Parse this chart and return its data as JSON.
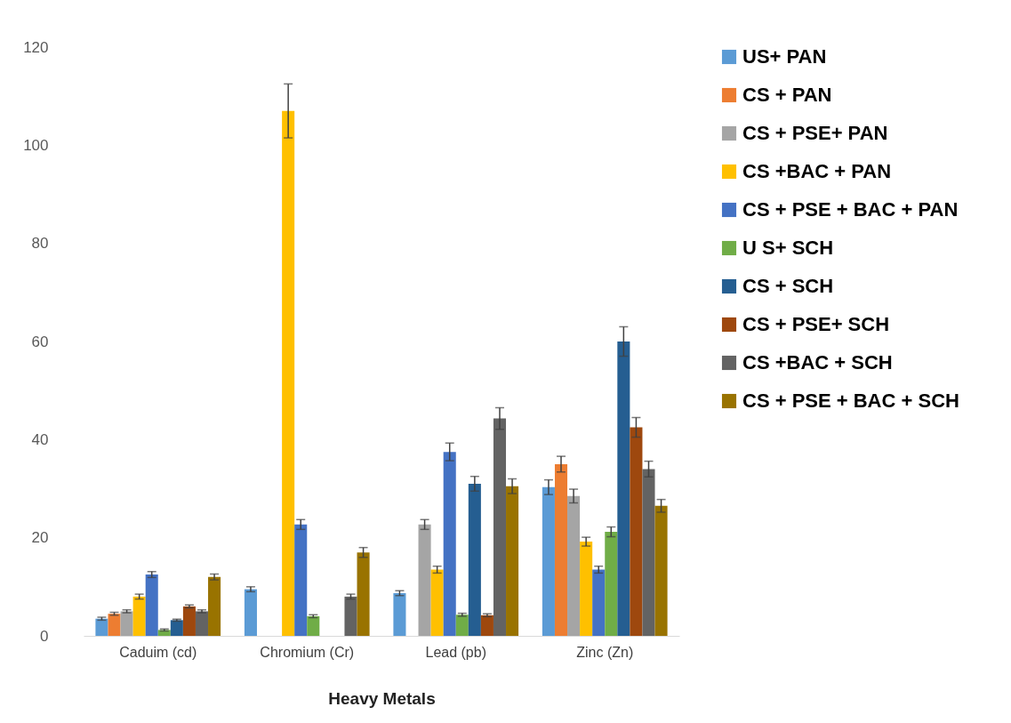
{
  "chart_data": {
    "type": "bar",
    "xlabel": "Heavy Metals",
    "categories": [
      "Caduim (cd)",
      "Chromium (Cr)",
      "Lead (pb)",
      "Zinc (Zn)"
    ],
    "ylim": [
      0,
      120
    ],
    "yticks": [
      0,
      20,
      40,
      60,
      80,
      100,
      120
    ],
    "grid": false,
    "legend": "right",
    "series": [
      {
        "name": "US+ PAN",
        "color": "#5b9bd5",
        "values": [
          3.5,
          9.5,
          8.7,
          30.3
        ],
        "errors": [
          0.3,
          0.5,
          0.5,
          1.5
        ]
      },
      {
        "name": "CS + PAN",
        "color": "#ed7d31",
        "values": [
          4.5,
          0,
          0,
          35
        ],
        "errors": [
          0.3,
          null,
          null,
          1.6
        ]
      },
      {
        "name": "CS + PSE+ PAN",
        "color": "#a5a5a5",
        "values": [
          5,
          0,
          22.7,
          28.5
        ],
        "errors": [
          0.3,
          null,
          1,
          1.4
        ]
      },
      {
        "name": "CS +BAC + PAN",
        "color": "#ffc000",
        "values": [
          8,
          107,
          13.5,
          19.2
        ],
        "errors": [
          0.5,
          5.5,
          0.7,
          0.9
        ]
      },
      {
        "name": "CS + PSE + BAC + PAN",
        "color": "#4472c4",
        "values": [
          12.5,
          22.7,
          37.5,
          13.5
        ],
        "errors": [
          0.6,
          1,
          1.8,
          0.7
        ]
      },
      {
        "name": "U S+ SCH",
        "color": "#70ad47",
        "values": [
          1.2,
          4,
          4.3,
          21.2
        ],
        "errors": [
          0.2,
          0.3,
          0.3,
          1
        ]
      },
      {
        "name": "CS + SCH",
        "color": "#255e91",
        "values": [
          3.2,
          0,
          31,
          60
        ],
        "errors": [
          0.2,
          null,
          1.5,
          3
        ]
      },
      {
        "name": "CS + PSE+ SCH",
        "color": "#9e480e",
        "values": [
          6,
          0,
          4.2,
          42.5
        ],
        "errors": [
          0.3,
          null,
          0.3,
          2
        ]
      },
      {
        "name": "CS +BAC + SCH",
        "color": "#636363",
        "values": [
          5,
          8,
          44.3,
          34
        ],
        "errors": [
          0.3,
          0.5,
          2.2,
          1.6
        ]
      },
      {
        "name": "CS + PSE + BAC + SCH",
        "color": "#997300",
        "values": [
          12,
          17,
          30.5,
          26.5
        ],
        "errors": [
          0.6,
          1,
          1.5,
          1.3
        ]
      }
    ]
  }
}
